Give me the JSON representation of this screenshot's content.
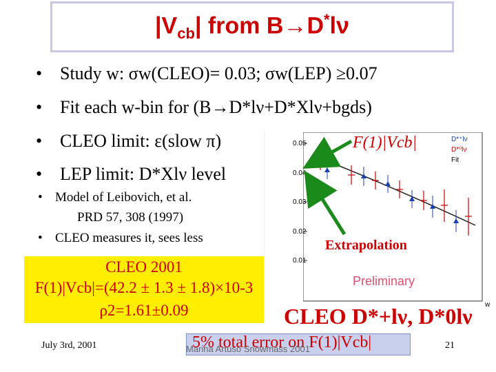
{
  "title": {
    "part1": "|V",
    "sub": "cb",
    "part2": "| from B",
    "arrow": "→",
    "part3": "D",
    "sup": "*",
    "part4": "lν"
  },
  "bullets": [
    {
      "marker": "•",
      "text": "Study w: σw(CLEO)= 0.03; σw(LEP) ≥0.07"
    },
    {
      "marker": "•",
      "text": "Fit each w-bin for (B→D*lν+D*Xlν+bgds)"
    },
    {
      "marker": "•",
      "text": "CLEO limit: ε(slow π)"
    },
    {
      "marker": "•",
      "text": "LEP limit: D*Xlν level"
    }
  ],
  "sub_bullets": [
    {
      "marker": "•",
      "line1": "Model of Leibovich, et al.",
      "line2": "PRD 57, 308 (1997)"
    },
    {
      "marker": "•",
      "line1": "CLEO measures it, sees less",
      "line2": ""
    }
  ],
  "cleo_box": {
    "line1": "CLEO 2001",
    "line2": "F(1)|Vcb|=(42.2 ± 1.3 ± 1.8)×10-3",
    "line3": "ρ2=1.61±0.09"
  },
  "plot": {
    "label": "F(1)|Vcb|",
    "extrapolation": "Extrapolation",
    "preliminary": "Preliminary",
    "y_ticks": [
      "0.05",
      "0.04",
      "0.03",
      "0.02",
      "0.01"
    ],
    "x_label": "w",
    "legend": [
      "D*⁺lν",
      "D*⁰lν",
      "Fit"
    ]
  },
  "cleo_decays": "CLEO D*+lν, D*0lν",
  "footer": {
    "date": "July 3rd, 2001",
    "error_note": "5% total error on F(1)|Vcb|",
    "author": "Marina Artuso Snowmass 2001",
    "page": "21"
  },
  "colors": {
    "title": "#cc0000",
    "highlight_box": "#ffee00",
    "note_box": "#c8d0ee"
  }
}
